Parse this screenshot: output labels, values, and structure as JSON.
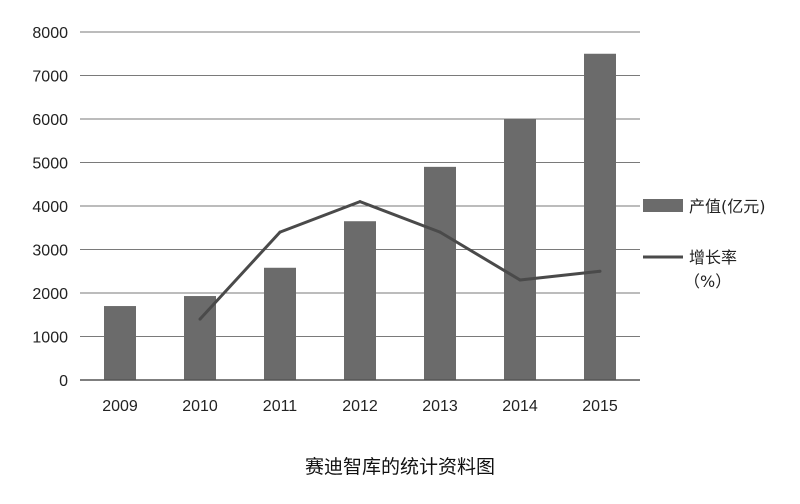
{
  "caption": "赛迪智库的统计资料图",
  "chart_data": {
    "type": "bar",
    "categories": [
      "2009",
      "2010",
      "2011",
      "2012",
      "2013",
      "2014",
      "2015"
    ],
    "ylim": [
      0,
      8000
    ],
    "yticks": [
      0,
      1000,
      2000,
      3000,
      4000,
      5000,
      6000,
      7000,
      8000
    ],
    "grid": true,
    "legend_position": "right",
    "series": [
      {
        "name": "产值(亿元)",
        "type": "bar",
        "color": "#6b6b6b",
        "values": [
          1700,
          1930,
          2580,
          3650,
          4900,
          6000,
          7500
        ]
      },
      {
        "name": "增长率",
        "name_line2": "（%）",
        "type": "line",
        "color": "#4a4a4a",
        "values": [
          null,
          1400,
          3400,
          4100,
          3400,
          2300,
          2500
        ]
      }
    ]
  }
}
